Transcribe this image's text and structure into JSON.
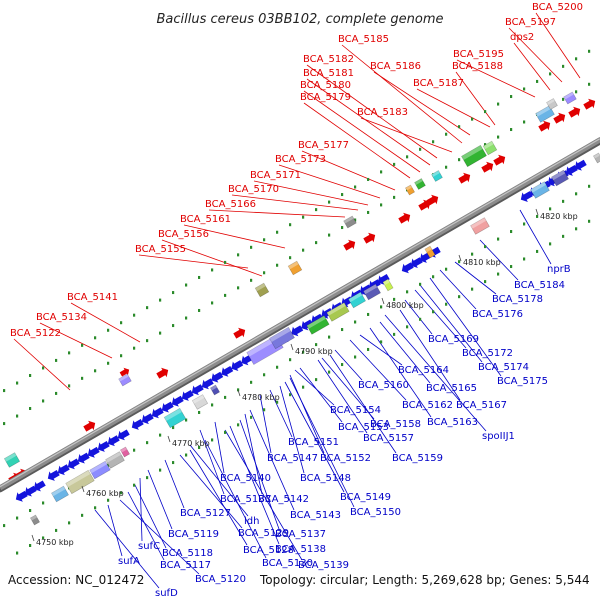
{
  "title": "Bacillus cereus 03BB102, complete genome",
  "footer": {
    "accession": "Accession: NC_012472",
    "summary": "Topology: circular; Length: 5,269,628 bp; Genes: 5,544"
  },
  "colors": {
    "top_label": "#e00000",
    "bottom_label": "#0000c8",
    "backbone": "#8c8c8c",
    "dots": "#2a8a2a"
  },
  "ticks": [
    "4750 kbp",
    "4760 kbp",
    "4770 kbp",
    "4780 kbp",
    "4790 kbp",
    "4800 kbp",
    "4810 kbp",
    "4820 kbp"
  ],
  "top_labels": [
    "BCA_5122",
    "BCA_5134",
    "BCA_5141",
    "BCA_5155",
    "BCA_5156",
    "BCA_5161",
    "BCA_5166",
    "BCA_5170",
    "BCA_5171",
    "BCA_5173",
    "BCA_5177",
    "BCA_5179",
    "BCA_5180",
    "BCA_5181",
    "BCA_5182",
    "BCA_5183",
    "BCA_5185",
    "BCA_5186",
    "BCA_5187",
    "BCA_5188",
    "BCA_5195",
    "dps2",
    "BCA_5197",
    "BCA_5200"
  ],
  "bottom_labels": [
    "sufD",
    "BCA_5120",
    "sufA",
    "BCA_5117",
    "BCA_5118",
    "sufC",
    "BCA_5119",
    "BCA_5127",
    "ldh",
    "BCA_5129",
    "BCA_5128",
    "BCA_5130",
    "BCA_5139",
    "BCA_5138",
    "BCA_5137",
    "BCA_5143",
    "BCA_5142",
    "BCA_5133",
    "BCA_5140",
    "BCA_5150",
    "BCA_5149",
    "BCA_5148",
    "BCA_5147",
    "BCA_5152",
    "BCA_5151",
    "BCA_5159",
    "BCA_5153",
    "BCA_5157",
    "BCA_5158",
    "BCA_5154",
    "BCA_5160",
    "BCA_5162",
    "BCA_5163",
    "spoIIJ1",
    "BCA_5164",
    "BCA_5165",
    "BCA_5167",
    "BCA_5169",
    "BCA_5172",
    "BCA_5174",
    "BCA_5175",
    "BCA_5176",
    "BCA_5178",
    "BCA_5184",
    "nprB"
  ]
}
